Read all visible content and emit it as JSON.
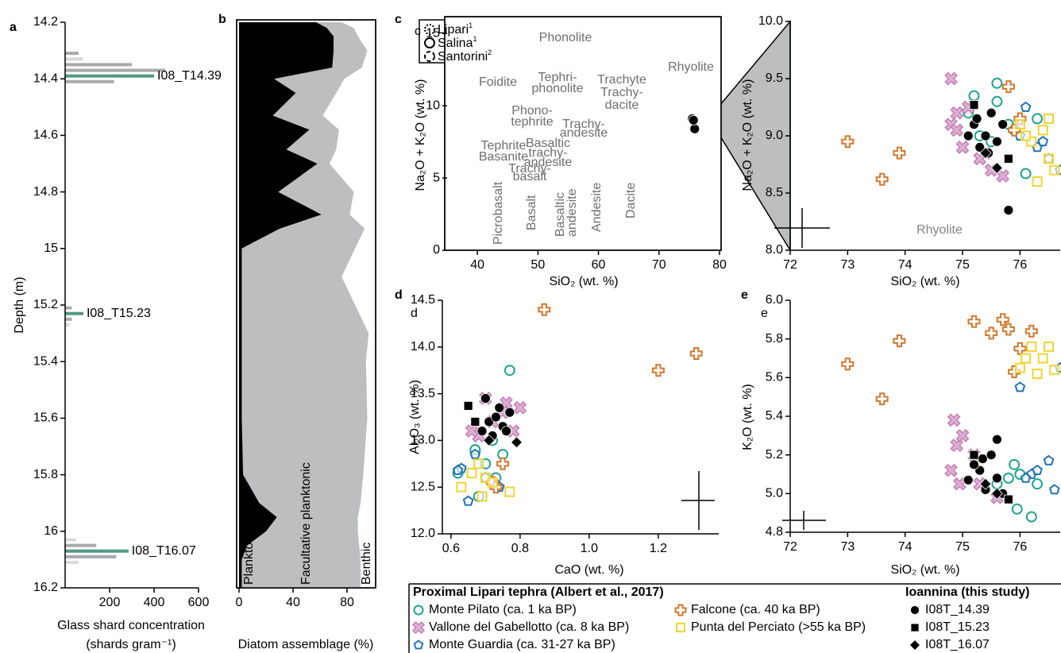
{
  "legend": {
    "titles": [
      "Proximal Lipari tephra (Albert et al., 2017)",
      "Ioannina (this study)"
    ]
  },
  "chart_data": [
    {
      "type": "bar",
      "label": "a",
      "ylabel": "Depth (m)",
      "xlabel": [
        "Glass shard concentration",
        "(shards gram⁻¹)"
      ],
      "xlim": [
        0,
        600
      ],
      "xticks": [
        200,
        400,
        600
      ],
      "ylim": [
        14.2,
        16.2
      ],
      "y_inverted": true,
      "yticks": [
        14.2,
        14.4,
        14.6,
        14.8,
        15,
        15.2,
        15.4,
        15.6,
        15.8,
        16,
        16.2
      ],
      "series": [
        {
          "color": "#d9dadb",
          "depths": [
            14.33,
            15.27,
            16.03,
            16.05,
            16.09,
            16.11
          ],
          "values": [
            80,
            20,
            50,
            40,
            220,
            60
          ]
        },
        {
          "color": "#a7a9ac",
          "depths": [
            14.31,
            14.35,
            14.37,
            14.41,
            15.21,
            15.25,
            16.05,
            16.09
          ],
          "values": [
            60,
            300,
            450,
            220,
            30,
            30,
            140,
            230
          ]
        },
        {
          "color": "#4e9a7f",
          "depths": [
            14.39,
            15.23,
            16.07
          ],
          "values": [
            400,
            82,
            285
          ]
        }
      ],
      "annotations": [
        "I08_T14.39",
        "I08_T15.23",
        "I08_T16.07"
      ]
    },
    {
      "type": "area",
      "label": "b",
      "xlabel": "Diatom assemblage (%)",
      "frame": true,
      "xlim": [
        0,
        100
      ],
      "xticks": [
        0,
        40,
        80
      ],
      "ylim": [
        14.2,
        16.2
      ],
      "y_inverted": true,
      "depths": [
        14.2,
        14.22,
        14.25,
        14.3,
        14.36,
        14.4,
        14.45,
        14.53,
        14.58,
        14.65,
        14.7,
        14.8,
        14.88,
        14.93,
        15,
        15.1,
        15.2,
        15.3,
        15.4,
        15.6,
        15.8,
        15.9,
        15.95,
        16,
        16.05,
        16.1,
        16.2
      ],
      "series": [
        {
          "name": "Planktonic",
          "color": "#000000",
          "values": [
            57,
            65,
            70,
            70,
            69,
            26,
            42,
            25,
            52,
            35,
            58,
            29,
            61,
            30,
            2,
            2,
            2,
            2,
            2,
            2,
            3,
            15,
            28,
            20,
            6,
            2,
            2
          ]
        },
        {
          "name": "Facultative planktonic",
          "color": "#bcbec0",
          "values": [
            19,
            20,
            18,
            25,
            22,
            52,
            30,
            37,
            22,
            37,
            9,
            56,
            21,
            63,
            84,
            74,
            84,
            94,
            92,
            93,
            89,
            75,
            60,
            68,
            83,
            88,
            88
          ]
        }
      ],
      "annotations": [
        "Benthic"
      ]
    },
    {
      "type": "scatter",
      "label": "c",
      "sublabel": "c",
      "frame": true,
      "xlabel": "SiO₂ (wt. %)",
      "ylabel": "Na₂O + K₂O (wt. %)",
      "xlim": [
        35,
        80
      ],
      "xticks": [
        40,
        50,
        60,
        70,
        80
      ],
      "ylim": [
        0,
        16
      ],
      "yticks": [
        0,
        5,
        10,
        15
      ],
      "fields": [
        [
          "Phonolite"
        ],
        [
          "Foidite"
        ],
        [
          "Tephri-",
          "phonolite"
        ],
        [
          "Trachyte",
          "Trachy-",
          "dacite"
        ],
        [
          "Rhyolite"
        ],
        [
          "Phono-",
          "tephrite"
        ],
        [
          "Trachy-",
          "andesite"
        ],
        [
          "Tephrite",
          "Basanite"
        ],
        [
          "Basaltic",
          "trachy-",
          "andesite"
        ],
        [
          "Trachy-",
          "basalt"
        ],
        [
          "Picrobasalt"
        ],
        [
          "Basalt"
        ],
        [
          "Basaltic",
          "andesite"
        ],
        [
          "Andesite"
        ],
        [
          "Dacite"
        ]
      ],
      "reference_fields": [
        {
          "name": "Lipari",
          "note": "1"
        },
        {
          "name": "Salina",
          "note": "1"
        },
        {
          "name": "Santorini",
          "note": "2"
        }
      ],
      "series": [
        {
          "color": "#000000",
          "marker": "circle",
          "x": [
            75.5,
            75.9,
            75.7
          ],
          "values": [
            9.1,
            8.4,
            9.0
          ]
        }
      ]
    },
    {
      "type": "scatter",
      "xlabel": "SiO₂ (wt. %)",
      "ylabel": "Na₂O + K₂O (wt. %)",
      "xlim": [
        72,
        76.7
      ],
      "xticks": [
        72,
        73,
        74,
        75,
        76
      ],
      "ylim": [
        8,
        10
      ],
      "yticks": [
        {
          "value": 8,
          "label": "8.0"
        },
        8.5,
        {
          "value": 9,
          "label": "9.0"
        },
        9.5,
        {
          "value": 10,
          "label": "10.0"
        }
      ],
      "annotations": [
        "Rhyolite"
      ],
      "series": [
        {
          "name": "Monte Pilato (ca. 1 ka BP)",
          "color": "#1fa58f",
          "marker": "circle-open",
          "x": [
            75.2,
            75.6,
            75.1,
            75.6,
            75.3,
            75.5,
            76.1,
            75.9,
            76.3,
            75.8
          ],
          "values": [
            9.35,
            9.46,
            9.2,
            9.3,
            9.0,
            8.95,
            8.67,
            9.05,
            9.15,
            9.1
          ]
        },
        {
          "name": "Vallone del Gabellotto (ca. 8 ka BP)",
          "color": "#c57cb5",
          "marker": "x",
          "x": [
            74.8,
            74.9,
            74.8,
            75.0,
            75.5,
            75.7,
            75.4,
            75.1,
            75.3,
            74.9
          ],
          "values": [
            9.5,
            9.2,
            9.1,
            8.9,
            8.7,
            8.65,
            8.85,
            9.25,
            8.8,
            9.05
          ]
        },
        {
          "name": "Monte Guardia (ca. 31-27 ka BP)",
          "color": "#1f73b4",
          "marker": "pentagon",
          "x": [
            76.1,
            76.3,
            76.5,
            76.7,
            76.0,
            76.4
          ],
          "values": [
            9.25,
            8.9,
            8.8,
            8.7,
            9.0,
            8.95
          ]
        },
        {
          "name": "Falcone (ca. 40 ka BP)",
          "color": "#d2782e",
          "marker": "cross",
          "x": [
            73.0,
            73.9,
            73.6,
            75.8,
            76.0,
            75.9
          ],
          "values": [
            8.95,
            8.85,
            8.62,
            9.43,
            9.15,
            9.05
          ]
        },
        {
          "name": "Punta del Perciato (>55 ka BP)",
          "color": "#f2d532",
          "marker": "square-open",
          "x": [
            76.0,
            76.2,
            76.4,
            76.5,
            76.6,
            76.3,
            76.5,
            76.1
          ],
          "values": [
            9.1,
            8.95,
            9.05,
            8.8,
            8.7,
            8.6,
            9.15,
            9.0
          ]
        },
        {
          "name": "I08T_14.39",
          "color": "#000000",
          "marker": "circle",
          "x": [
            75.2,
            75.4,
            75.5,
            75.6,
            75.3,
            75.1,
            75.7,
            75.8,
            75.45,
            75.25
          ],
          "values": [
            9.1,
            9.0,
            9.2,
            8.95,
            8.9,
            9.0,
            9.1,
            8.35,
            8.85,
            9.15
          ]
        },
        {
          "name": "I08T_15.23",
          "color": "#000000",
          "marker": "square",
          "x": [
            75.2,
            75.8
          ],
          "values": [
            9.27,
            8.8
          ]
        },
        {
          "name": "I08T_16.07",
          "color": "#000000",
          "marker": "diamond",
          "x": [
            75.6,
            75.4
          ],
          "values": [
            8.72,
            8.85
          ]
        }
      ]
    },
    {
      "type": "scatter",
      "label": "d",
      "sublabel": "d",
      "xlabel": "CaO (wt. %)",
      "ylabel": "Al₂O₃ (wt. %)",
      "xlim": [
        0.575,
        1.375
      ],
      "xticks": [
        0.6,
        0.8,
        {
          "value": 1,
          "label": "1.0"
        },
        1.2
      ],
      "ylim": [
        12,
        14.5
      ],
      "yticks": [
        {
          "value": 12,
          "label": "12.0"
        },
        12.5,
        {
          "value": 13,
          "label": "13.0"
        },
        13.5,
        {
          "value": 14,
          "label": "14.0"
        },
        14.5
      ],
      "series": [
        {
          "x": [
            0.77,
            0.72,
            0.67,
            0.75,
            0.62,
            0.7,
            0.68,
            0.73
          ],
          "values": [
            13.75,
            13.0,
            12.9,
            12.85,
            12.65,
            12.75,
            12.4,
            12.6
          ]
        },
        {
          "x": [
            0.7,
            0.75,
            0.8,
            0.68,
            0.72,
            0.78,
            0.76,
            0.66
          ],
          "values": [
            13.45,
            13.3,
            13.35,
            13.05,
            13.2,
            13.1,
            13.4,
            13.1
          ]
        },
        {
          "x": [
            0.65,
            0.63,
            0.67,
            0.7,
            0.74,
            0.62
          ],
          "values": [
            12.35,
            12.7,
            12.85,
            12.6,
            12.5,
            12.68
          ]
        },
        {
          "x": [
            0.87,
            1.2,
            1.31,
            0.75,
            0.72,
            0.73
          ],
          "values": [
            14.4,
            13.75,
            13.93,
            12.75,
            12.55,
            12.5
          ]
        },
        {
          "x": [
            0.63,
            0.68,
            0.7,
            0.69,
            0.72,
            0.77,
            0.66
          ],
          "values": [
            12.5,
            12.75,
            12.6,
            12.4,
            12.55,
            12.45,
            12.65
          ]
        },
        {
          "x": [
            0.71,
            0.73,
            0.75,
            0.7,
            0.77,
            0.72,
            0.76,
            0.74,
            0.69
          ],
          "values": [
            13.2,
            13.25,
            13.15,
            13.45,
            13.3,
            13.05,
            13.1,
            13.35,
            13.1
          ]
        },
        {
          "x": [
            0.65,
            0.67
          ],
          "values": [
            13.37,
            13.2
          ]
        },
        {
          "x": [
            0.71,
            0.79
          ],
          "values": [
            13.0,
            12.98
          ]
        }
      ]
    },
    {
      "type": "scatter",
      "label": "e",
      "sublabel": "e",
      "xlabel": "SiO₂ (wt. %)",
      "ylabel": "K₂O (wt. %)",
      "xlim": [
        72,
        76.7
      ],
      "xticks": [
        72,
        73,
        74,
        75,
        76
      ],
      "ylim": [
        4.8,
        6.0
      ],
      "yticks": [
        4.8,
        {
          "value": 5,
          "label": "5.0"
        },
        5.2,
        5.4,
        5.6,
        5.8,
        {
          "value": 6,
          "label": "6.0"
        }
      ],
      "series": [
        {
          "x": [
            75.9,
            76.0,
            76.2,
            75.95,
            75.6,
            76.3,
            75.8
          ],
          "values": [
            5.15,
            5.1,
            4.88,
            4.92,
            5.05,
            5.05,
            5.08
          ]
        },
        {
          "x": [
            74.85,
            74.9,
            74.8,
            75.0,
            75.2,
            75.3,
            75.6,
            74.95
          ],
          "values": [
            5.38,
            5.25,
            5.12,
            5.3,
            5.2,
            5.05,
            4.98,
            5.05
          ]
        },
        {
          "x": [
            76.0,
            76.2,
            76.5,
            76.6,
            76.1,
            76.3,
            76.7
          ],
          "values": [
            5.55,
            5.1,
            5.17,
            5.02,
            5.08,
            5.12,
            5.65
          ]
        },
        {
          "x": [
            73.0,
            73.6,
            73.9,
            75.2,
            75.7,
            75.8,
            75.5,
            76.0,
            76.2,
            75.9
          ],
          "values": [
            5.67,
            5.49,
            5.79,
            5.89,
            5.9,
            5.85,
            5.83,
            5.75,
            5.84,
            5.63
          ]
        },
        {
          "x": [
            76.0,
            76.3,
            76.4,
            76.5,
            76.2,
            76.6,
            76.1
          ],
          "values": [
            5.65,
            5.62,
            5.7,
            5.76,
            5.76,
            5.64,
            5.7
          ]
        },
        {
          "x": [
            75.1,
            75.3,
            75.4,
            75.6,
            75.5,
            75.7,
            75.35,
            75.2,
            75.6
          ],
          "values": [
            5.07,
            5.12,
            5.02,
            5.08,
            5.2,
            5.0,
            5.18,
            5.15,
            5.28
          ]
        },
        {
          "x": [
            75.2,
            75.8
          ],
          "values": [
            5.2,
            4.97
          ]
        },
        {
          "x": [
            75.4,
            75.6
          ],
          "values": [
            5.05,
            5.0
          ]
        }
      ]
    }
  ]
}
